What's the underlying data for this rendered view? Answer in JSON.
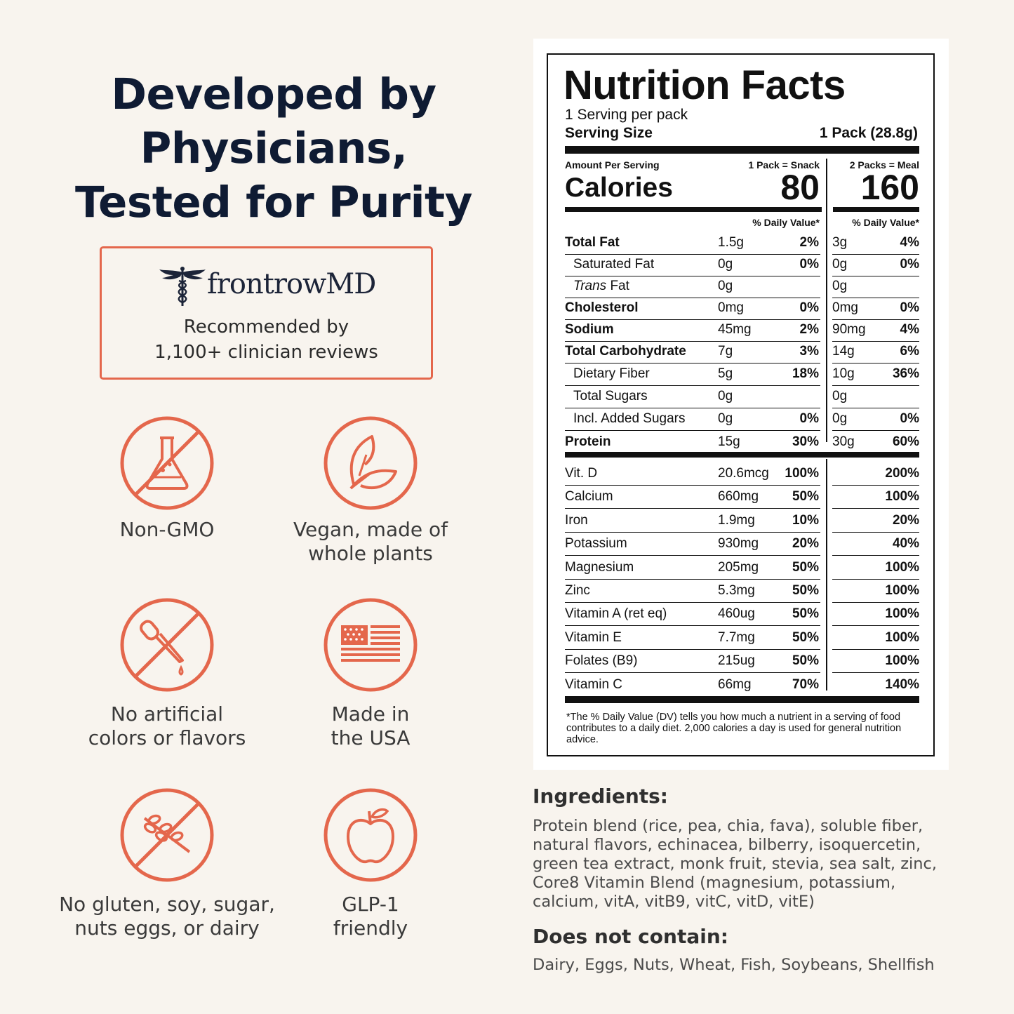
{
  "headline": [
    "Developed by",
    "Physicians,",
    "Tested for Purity"
  ],
  "badge": {
    "brand": "frontrowMD",
    "recommended": [
      "Recommended by",
      "1,100+ clinician reviews"
    ]
  },
  "features": [
    {
      "icon": "no-flask-icon",
      "label": [
        "Non-GMO"
      ]
    },
    {
      "icon": "leaf-icon",
      "label": [
        "Vegan, made of",
        "whole plants"
      ]
    },
    {
      "icon": "no-dropper-icon",
      "label": [
        "No artificial",
        "colors or flavors"
      ]
    },
    {
      "icon": "usa-flag-icon",
      "label": [
        "Made in",
        "the USA"
      ]
    },
    {
      "icon": "no-wheat-icon",
      "label": [
        "No gluten, soy, sugar,",
        "nuts eggs, or dairy"
      ]
    },
    {
      "icon": "apple-icon",
      "label": [
        "GLP-1",
        "friendly"
      ]
    }
  ],
  "nutrition": {
    "title": "Nutrition Facts",
    "servings": "1 Serving per pack",
    "serving_size_label": "Serving Size",
    "serving_size_value": "1 Pack (28.8g)",
    "amount_per_serving": "Amount Per Serving",
    "col1_header": "1 Pack = Snack",
    "col2_header": "2 Packs = Meal",
    "calories_label": "Calories",
    "calories_1": "80",
    "calories_2": "160",
    "dv_header": "% Daily Value*",
    "rows": [
      {
        "name": "Total Fat",
        "bold": true,
        "indent": false,
        "a1": "1.5g",
        "d1": "2%",
        "a2": "3g",
        "d2": "4%"
      },
      {
        "name": "Saturated Fat",
        "bold": false,
        "indent": true,
        "a1": "0g",
        "d1": "0%",
        "a2": "0g",
        "d2": "0%"
      },
      {
        "name": "Trans Fat",
        "bold": false,
        "indent": true,
        "italic_prefix": "Trans",
        "a1": "0g",
        "d1": "",
        "a2": "0g",
        "d2": ""
      },
      {
        "name": "Cholesterol",
        "bold": true,
        "indent": false,
        "a1": "0mg",
        "d1": "0%",
        "a2": "0mg",
        "d2": "0%"
      },
      {
        "name": "Sodium",
        "bold": true,
        "indent": false,
        "a1": "45mg",
        "d1": "2%",
        "a2": "90mg",
        "d2": "4%"
      },
      {
        "name": "Total Carbohydrate",
        "bold": true,
        "indent": false,
        "a1": "7g",
        "d1": "3%",
        "a2": "14g",
        "d2": "6%"
      },
      {
        "name": "Dietary Fiber",
        "bold": false,
        "indent": true,
        "a1": "5g",
        "d1": "18%",
        "a2": "10g",
        "d2": "36%"
      },
      {
        "name": "Total Sugars",
        "bold": false,
        "indent": true,
        "a1": "0g",
        "d1": "",
        "a2": "0g",
        "d2": ""
      },
      {
        "name": "Incl. Added Sugars",
        "bold": false,
        "indent": true,
        "a1": "0g",
        "d1": "0%",
        "a2": "0g",
        "d2": "0%"
      },
      {
        "name": "Protein",
        "bold": true,
        "indent": false,
        "a1": "15g",
        "d1": "30%",
        "a2": "30g",
        "d2": "60%"
      }
    ],
    "vitamins": [
      {
        "name": "Vit. D",
        "a1": "20.6mcg",
        "d1": "100%",
        "d2": "200%"
      },
      {
        "name": "Calcium",
        "a1": "660mg",
        "d1": "50%",
        "d2": "100%"
      },
      {
        "name": "Iron",
        "a1": "1.9mg",
        "d1": "10%",
        "d2": "20%"
      },
      {
        "name": "Potassium",
        "a1": "930mg",
        "d1": "20%",
        "d2": "40%"
      },
      {
        "name": "Magnesium",
        "a1": "205mg",
        "d1": "50%",
        "d2": "100%"
      },
      {
        "name": "Zinc",
        "a1": "5.3mg",
        "d1": "50%",
        "d2": "100%"
      },
      {
        "name": "Vitamin A (ret eq)",
        "a1": "460ug",
        "d1": "50%",
        "d2": "100%"
      },
      {
        "name": "Vitamin E",
        "a1": "7.7mg",
        "d1": "50%",
        "d2": "100%"
      },
      {
        "name": "Folates (B9)",
        "a1": "215ug",
        "d1": "50%",
        "d2": "100%"
      },
      {
        "name": "Vitamin C",
        "a1": "66mg",
        "d1": "70%",
        "d2": "140%"
      }
    ],
    "footnote": "*The % Daily Value (DV) tells you how much a nutrient in a serving of food contributes to a daily diet. 2,000 calories a day is used for general nutrition advice."
  },
  "ingredients": {
    "heading": "Ingredients:",
    "lines": [
      "Protein blend (rice, pea, chia, fava), soluble fiber,",
      "natural flavors, echinacea, bilberry, isoquercetin,",
      "green tea extract, monk fruit, stevia, sea salt, zinc,",
      "Core8 Vitamin Blend (magnesium, potassium,",
      "calcium, vitA, vitB9, vitC, vitD, vitE)"
    ]
  },
  "does_not_contain": {
    "heading": "Does not contain:",
    "text": "Dairy, Eggs, Nuts, Wheat, Fish, Soybeans, Shellfish"
  },
  "colors": {
    "accent": "#e4674c",
    "navy": "#0f1b33",
    "background": "#f8f4ee"
  }
}
